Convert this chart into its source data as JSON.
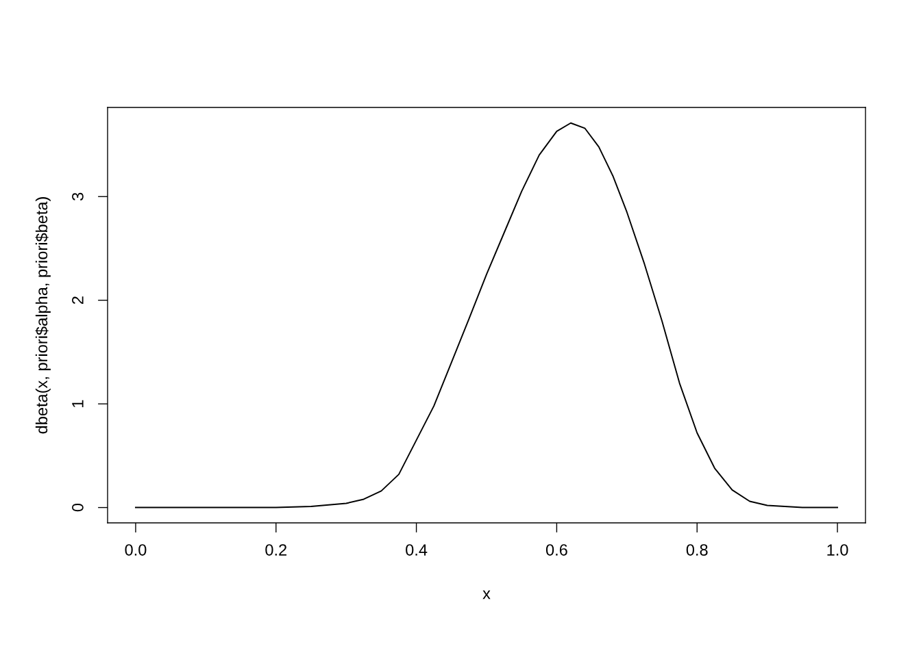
{
  "chart_data": {
    "type": "line",
    "xlabel": "x",
    "ylabel": "dbeta(x, priori$alpha, priori$beta)",
    "x": [
      0,
      0.1,
      0.2,
      0.25,
      0.3,
      0.325,
      0.35,
      0.375,
      0.4,
      0.425,
      0.45,
      0.475,
      0.5,
      0.525,
      0.55,
      0.575,
      0.6,
      0.62,
      0.64,
      0.66,
      0.68,
      0.7,
      0.725,
      0.75,
      0.775,
      0.8,
      0.825,
      0.85,
      0.875,
      0.9,
      0.95,
      1.0
    ],
    "series": [
      {
        "color": "#000000",
        "values": [
          0,
          0,
          0,
          0.01,
          0.04,
          0.08,
          0.16,
          0.32,
          0.65,
          0.98,
          1.4,
          1.82,
          2.25,
          2.65,
          3.05,
          3.4,
          3.63,
          3.71,
          3.66,
          3.48,
          3.2,
          2.85,
          2.35,
          1.8,
          1.2,
          0.72,
          0.38,
          0.17,
          0.06,
          0.02,
          0,
          0
        ]
      }
    ],
    "xlim": [
      -0.04,
      1.04
    ],
    "ylim": [
      -0.148,
      3.86
    ],
    "xticks": [
      {
        "value": 0,
        "label": "0.0"
      },
      0.2,
      0.4,
      0.6,
      0.8,
      {
        "value": 1,
        "label": "1.0"
      }
    ],
    "yticks": [
      0,
      1,
      2,
      3
    ],
    "grid": false,
    "legend": false,
    "marker": "none",
    "line_style": "solid"
  }
}
